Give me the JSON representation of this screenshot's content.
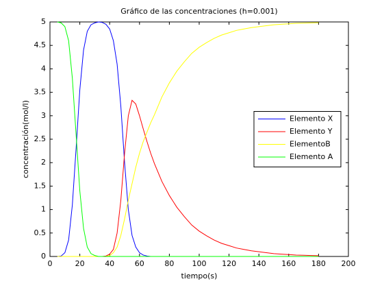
{
  "chart_data": {
    "type": "line",
    "title": "Gráfico de las concentraciones (h=0.001)",
    "x_label": "tiempo(s)",
    "y_label": "concentración(mol/l)",
    "x": [
      5,
      7.5,
      10,
      12.5,
      15,
      17.5,
      20,
      22.5,
      25,
      27.5,
      30,
      32.5,
      35,
      37.5,
      40,
      42.5,
      45,
      47.5,
      50,
      52.5,
      55,
      57.5,
      60,
      62.5,
      65,
      67.5,
      70,
      75,
      80,
      85,
      90,
      95,
      100,
      105,
      110,
      115,
      120,
      125,
      130,
      135,
      140,
      145,
      150,
      155,
      160,
      165,
      170,
      175,
      180
    ],
    "series": [
      {
        "name": "Elemento X",
        "color": "#0000ff",
        "values": [
          0,
          0.01,
          0.08,
          0.35,
          1.1,
          2.3,
          3.55,
          4.4,
          4.8,
          4.94,
          4.98,
          5,
          4.99,
          4.95,
          4.85,
          4.6,
          4.1,
          3.2,
          2,
          1,
          0.45,
          0.2,
          0.08,
          0.03,
          0.01,
          0,
          0,
          0,
          0,
          0,
          0,
          0,
          0,
          0,
          0,
          0,
          0,
          0,
          0,
          0,
          0,
          0,
          0,
          0,
          0,
          0,
          0,
          0,
          0
        ]
      },
      {
        "name": "Elemento Y",
        "color": "#ff0000",
        "values": [
          0,
          0,
          0,
          0,
          0,
          0,
          0,
          0,
          0,
          0,
          0,
          0,
          0,
          0.01,
          0.05,
          0.15,
          0.5,
          1.2,
          2.2,
          3,
          3.33,
          3.25,
          3,
          2.72,
          2.45,
          2.2,
          1.98,
          1.6,
          1.3,
          1.05,
          0.85,
          0.67,
          0.54,
          0.44,
          0.35,
          0.28,
          0.23,
          0.18,
          0.15,
          0.12,
          0.1,
          0.08,
          0.06,
          0.05,
          0.04,
          0.03,
          0.025,
          0.02,
          0.016
        ]
      },
      {
        "name": "ElementoB",
        "color": "#ffff00",
        "values": [
          0,
          0,
          0,
          0,
          0,
          0,
          0,
          0,
          0,
          0,
          0,
          0,
          0,
          0,
          0.02,
          0.08,
          0.2,
          0.45,
          0.8,
          1.2,
          1.55,
          1.9,
          2.2,
          2.45,
          2.65,
          2.85,
          3.02,
          3.4,
          3.7,
          3.95,
          4.15,
          4.33,
          4.46,
          4.56,
          4.65,
          4.72,
          4.77,
          4.82,
          4.85,
          4.88,
          4.9,
          4.92,
          4.94,
          4.95,
          4.96,
          4.97,
          4.975,
          4.98,
          4.984
        ]
      },
      {
        "name": "Elemento A",
        "color": "#00ff00",
        "values": [
          5,
          4.98,
          4.9,
          4.6,
          3.8,
          2.6,
          1.4,
          0.6,
          0.2,
          0.06,
          0.02,
          0,
          0,
          0,
          0,
          0,
          0,
          0,
          0,
          0,
          0,
          0,
          0,
          0,
          0,
          0,
          0,
          0,
          0,
          0,
          0,
          0,
          0,
          0,
          0,
          0,
          0,
          0,
          0,
          0,
          0,
          0,
          0,
          0,
          0,
          0,
          0,
          0,
          0
        ]
      }
    ],
    "xlim": [
      0,
      200
    ],
    "xticks": [
      0,
      20,
      40,
      60,
      80,
      100,
      120,
      140,
      160,
      180,
      200
    ],
    "ylim": [
      0,
      5
    ],
    "yticks": [
      0,
      0.5,
      1,
      1.5,
      2,
      2.5,
      3,
      3.5,
      4,
      4.5,
      5
    ],
    "grid": false,
    "legend": "east"
  }
}
